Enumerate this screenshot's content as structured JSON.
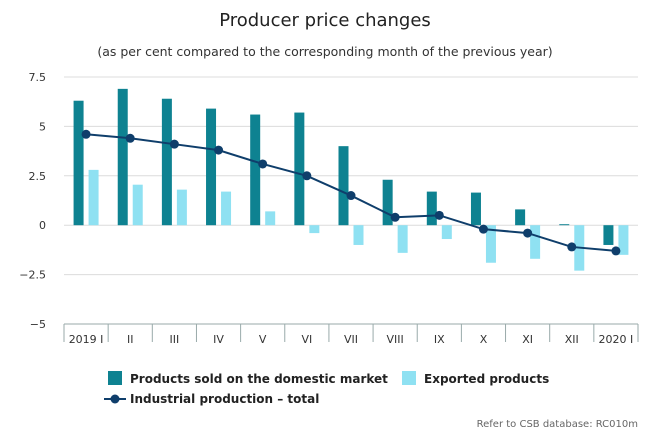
{
  "chart_data": {
    "type": "bar",
    "title": "Producer price changes",
    "subtitle": "(as per cent compared to the corresponding month of the previous year)",
    "categories": [
      "2019 I",
      "II",
      "III",
      "IV",
      "V",
      "VI",
      "VII",
      "VIII",
      "IX",
      "X",
      "XI",
      "XII",
      "2020 I"
    ],
    "ylim": [
      -5,
      7.5
    ],
    "yticks": [
      -5,
      -2.5,
      0,
      2.5,
      5,
      7.5
    ],
    "ytick_labels": [
      "−5",
      "−2.5",
      "0",
      "2.5",
      "5",
      "7.5"
    ],
    "grid": true,
    "legend_position": "bottom",
    "series": [
      {
        "name": "Products sold on the domestic market",
        "kind": "bar",
        "color": "#0e8291",
        "values": [
          6.3,
          6.9,
          6.4,
          5.9,
          5.6,
          5.7,
          4.0,
          2.3,
          1.7,
          1.65,
          0.8,
          0.05,
          -1.0
        ]
      },
      {
        "name": "Exported products",
        "kind": "bar",
        "color": "#8fe1f2",
        "values": [
          2.8,
          2.05,
          1.8,
          1.7,
          0.7,
          -0.4,
          -1.0,
          -1.4,
          -0.7,
          -1.9,
          -1.7,
          -2.3,
          -1.5
        ]
      },
      {
        "name": "Industrial production – total",
        "kind": "line",
        "color": "#0f3e6b",
        "values": [
          4.6,
          4.4,
          4.1,
          3.8,
          3.1,
          2.5,
          1.5,
          0.4,
          0.5,
          -0.2,
          -0.4,
          -1.1,
          -1.3
        ]
      }
    ],
    "source_note": "Refer to CSB database: RC010m"
  }
}
